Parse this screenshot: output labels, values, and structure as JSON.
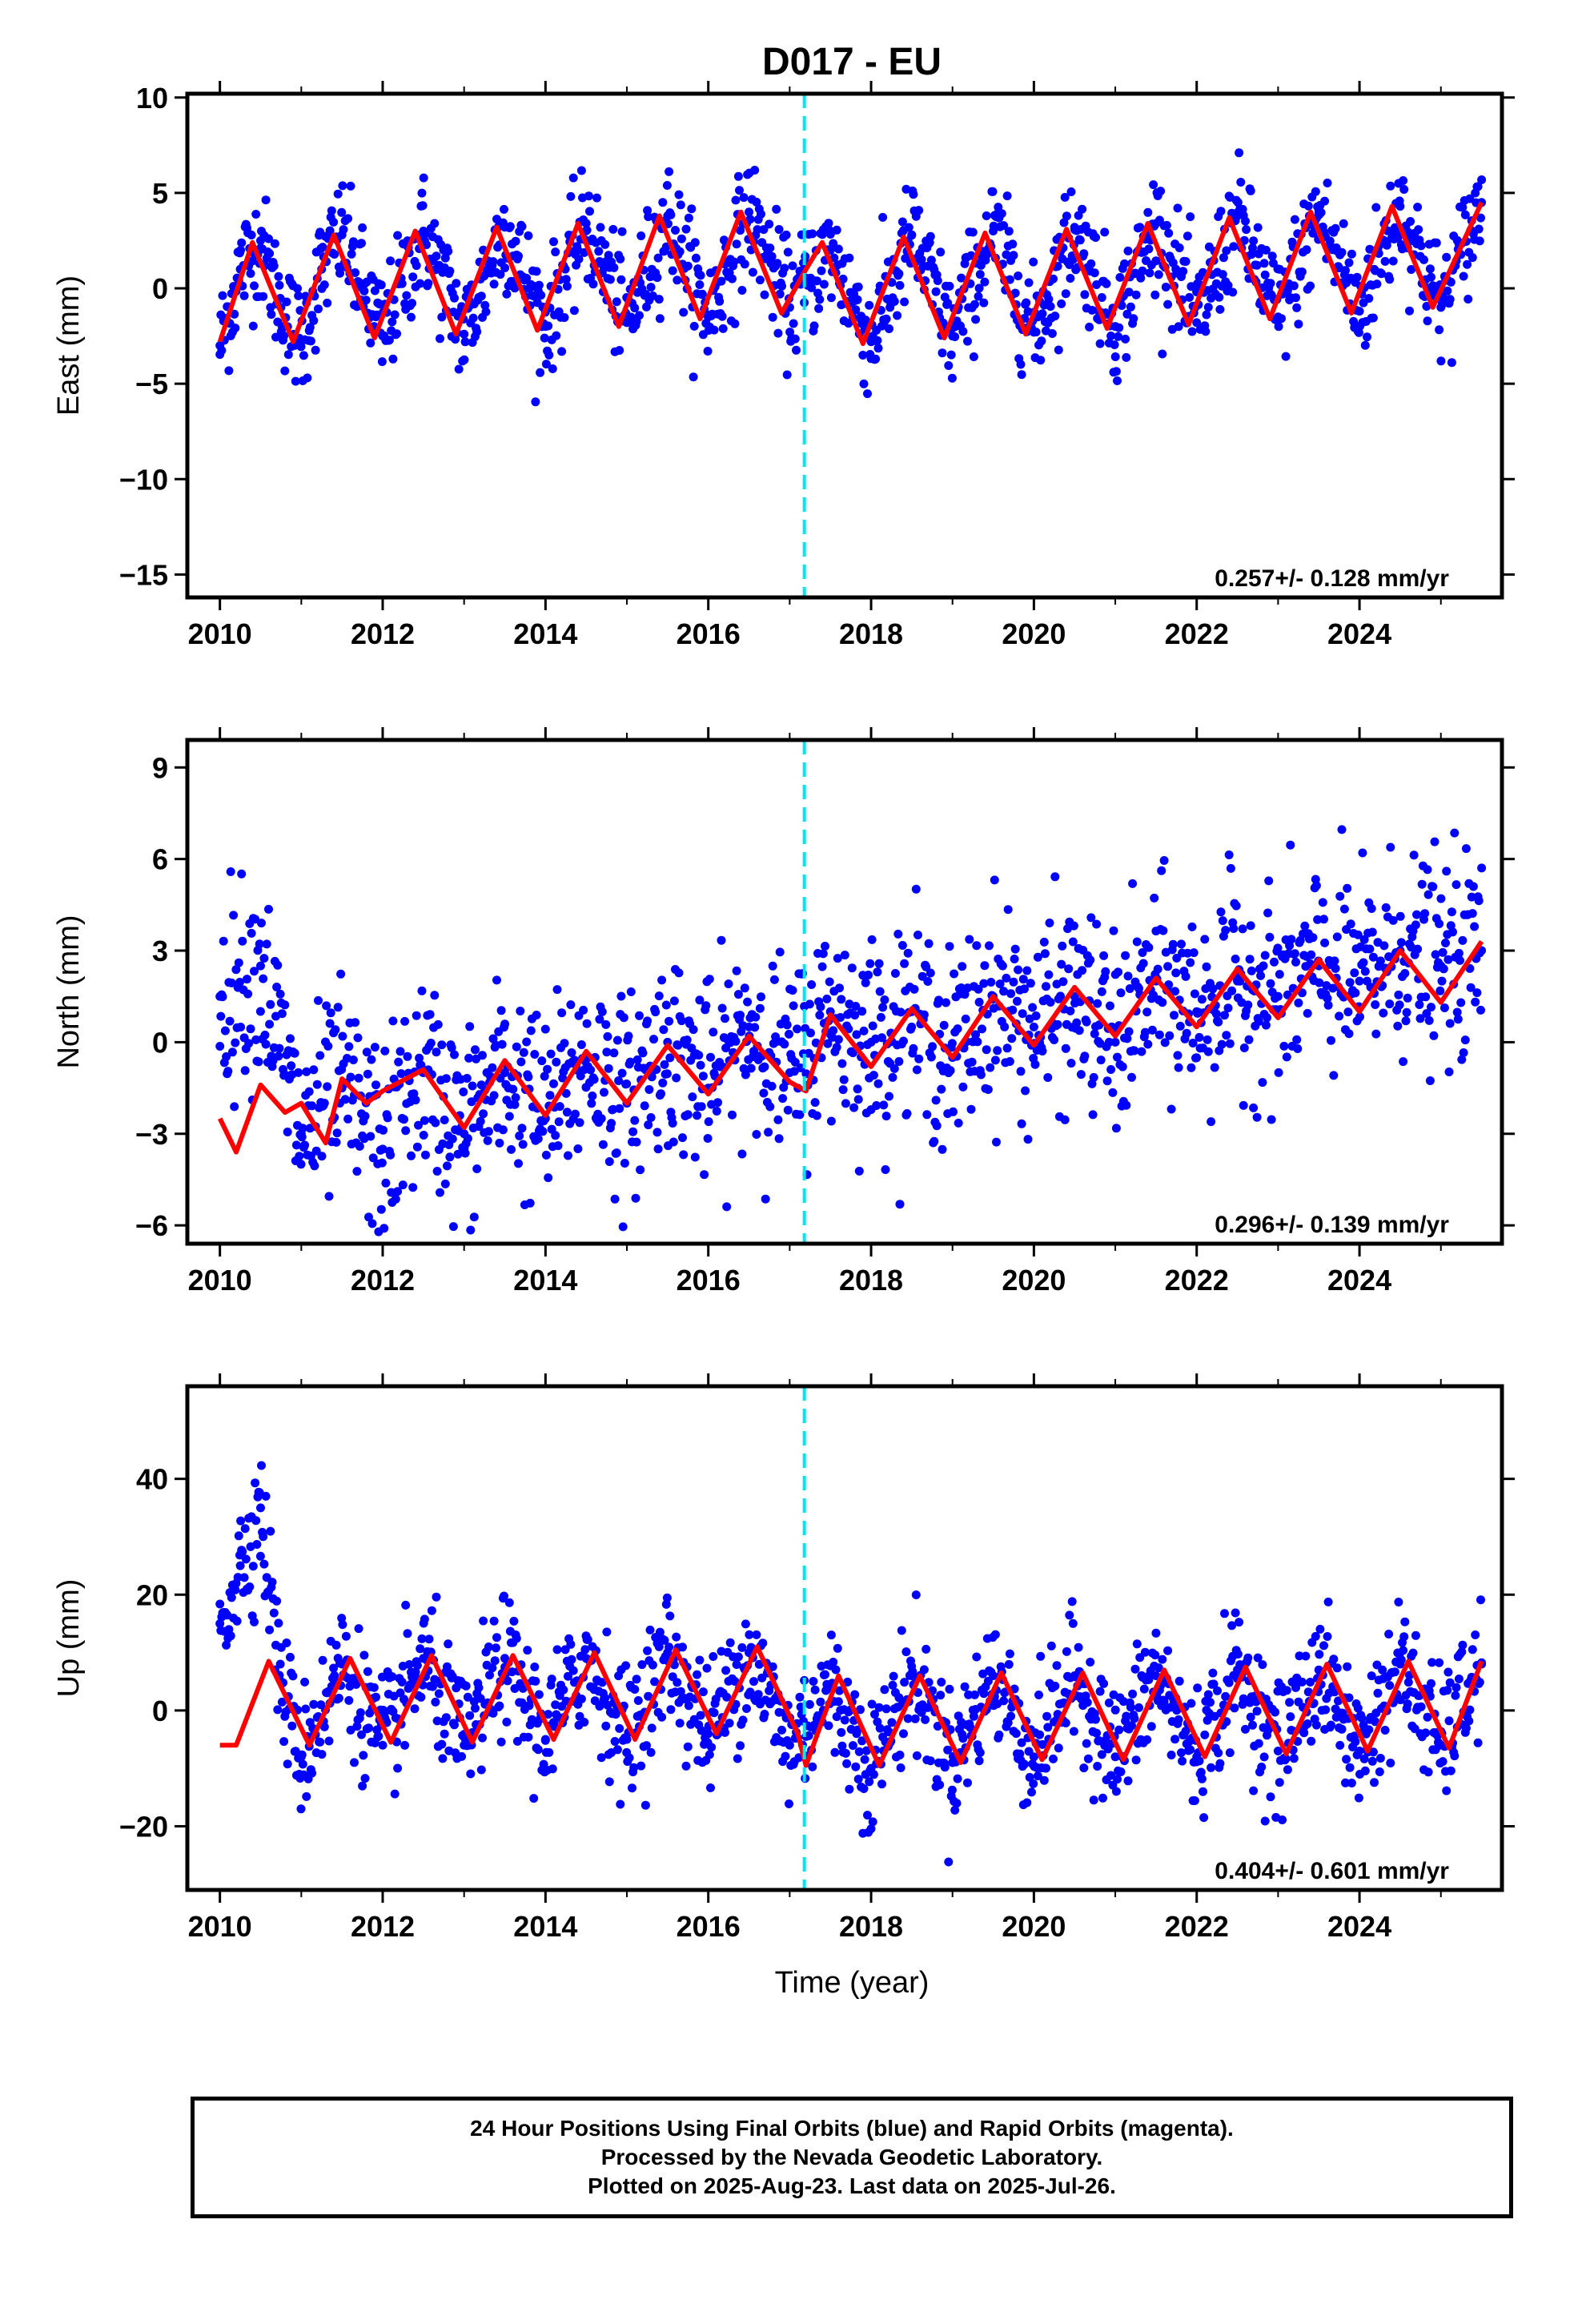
{
  "title": "D017 - EU",
  "colors": {
    "final_orbits": "#0000ff",
    "fit_curve": "#ff0000",
    "event_line": "#00e5ee",
    "axes": "#000000"
  },
  "x_axis": {
    "label": "Time (year)",
    "range": [
      2009.6,
      2025.75
    ],
    "ticks": [
      "2010",
      "2012",
      "2014",
      "2016",
      "2018",
      "2020",
      "2022",
      "2024"
    ]
  },
  "event_line_year": 2017.18,
  "panels": [
    {
      "id": "east",
      "ylabel": "East (mm)",
      "ylim": [
        -16.2,
        10.2
      ],
      "yticks": [
        "10",
        "5",
        "0",
        "−5",
        "−10",
        "−15"
      ],
      "rate_label": "0.257+/- 0.128 mm/yr"
    },
    {
      "id": "north",
      "ylabel": "North (mm)",
      "ylim": [
        -6.6,
        9.9
      ],
      "yticks": [
        "9",
        "6",
        "3",
        "0",
        "−3",
        "−6"
      ],
      "rate_label": "0.296+/- 0.139 mm/yr"
    },
    {
      "id": "up",
      "ylabel": "Up (mm)",
      "ylim": [
        -31,
        56
      ],
      "yticks": [
        "40",
        "20",
        "0",
        "−20"
      ],
      "rate_label": "0.404+/- 0.601 mm/yr"
    }
  ],
  "caption": {
    "line1": "24 Hour Positions Using Final Orbits (blue) and Rapid Orbits (magenta).",
    "line2": "Processed by the Nevada Geodetic Laboratory.",
    "line3": "Plotted on 2025-Aug-23. Last data on 2025-Jul-26."
  },
  "chart_data": [
    {
      "type": "scatter",
      "title": "D017 - EU",
      "xlabel": "",
      "ylabel": "East (mm)",
      "xlim": [
        2009.6,
        2025.75
      ],
      "ylim": [
        -16.2,
        10.2
      ],
      "grid": false,
      "annotation": "0.257+/- 0.128 mm/yr",
      "series": [
        {
          "name": "Final Orbits",
          "kind": "points",
          "x": [
            2010.0,
            2010.25,
            2010.5,
            2010.75,
            2011.0,
            2011.25,
            2011.5,
            2011.75,
            2012.0,
            2012.5,
            2013.0,
            2013.5,
            2014.0,
            2014.5,
            2015.0,
            2015.5,
            2016.0,
            2016.5,
            2017.0,
            2017.5,
            2018.0,
            2018.5,
            2019.0,
            2019.5,
            2020.0,
            2020.5,
            2021.0,
            2021.5,
            2022.0,
            2022.5,
            2023.0,
            2023.5,
            2024.0,
            2024.5,
            2025.0,
            2025.5
          ],
          "y": [
            -3.0,
            1.0,
            2.5,
            -1.0,
            -2.8,
            1.0,
            2.8,
            0.0,
            -2.5,
            3.0,
            -2.4,
            3.2,
            -2.0,
            3.4,
            -1.8,
            3.8,
            -1.5,
            4.0,
            -1.0,
            2.0,
            -2.8,
            2.8,
            -2.5,
            3.0,
            -2.3,
            3.2,
            -2.0,
            3.4,
            -1.8,
            3.8,
            -1.5,
            4.0,
            -1.2,
            4.3,
            -1.0,
            4.5
          ]
        },
        {
          "name": "Model fit",
          "kind": "line",
          "x": [
            2010.0,
            2010.4,
            2010.9,
            2011.4,
            2011.9,
            2012.4,
            2012.9,
            2013.4,
            2013.9,
            2014.4,
            2014.9,
            2015.4,
            2015.9,
            2016.4,
            2016.9,
            2017.2,
            2017.4,
            2017.9,
            2018.4,
            2018.9,
            2019.4,
            2019.9,
            2020.4,
            2020.9,
            2021.4,
            2021.9,
            2022.4,
            2022.9,
            2023.4,
            2023.9,
            2024.4,
            2024.9,
            2025.5
          ],
          "y": [
            -2.8,
            2.4,
            -2.8,
            2.8,
            -2.6,
            3.0,
            -2.4,
            3.2,
            -2.2,
            3.4,
            -2.0,
            3.8,
            -1.6,
            4.0,
            -1.3,
            1.0,
            2.4,
            -2.9,
            2.7,
            -2.6,
            2.9,
            -2.4,
            3.1,
            -2.1,
            3.4,
            -1.9,
            3.7,
            -1.6,
            4.0,
            -1.3,
            4.3,
            -1.0,
            4.5
          ]
        }
      ]
    },
    {
      "type": "scatter",
      "xlabel": "",
      "ylabel": "North (mm)",
      "xlim": [
        2009.6,
        2025.75
      ],
      "ylim": [
        -6.6,
        9.9
      ],
      "grid": false,
      "annotation": "0.296+/- 0.139 mm/yr",
      "series": [
        {
          "name": "Final Orbits",
          "kind": "points",
          "x": [
            2010.0,
            2010.5,
            2011.0,
            2011.5,
            2012.0,
            2012.5,
            2013.0,
            2013.5,
            2014.0,
            2014.5,
            2015.0,
            2015.5,
            2016.0,
            2016.5,
            2017.0,
            2017.5,
            2018.0,
            2018.5,
            2019.0,
            2019.5,
            2020.0,
            2020.5,
            2021.0,
            2021.5,
            2022.0,
            2022.5,
            2023.0,
            2023.5,
            2024.0,
            2024.5,
            2025.0,
            2025.5
          ],
          "y": [
            1.5,
            2.5,
            -3.0,
            -1.5,
            -3.5,
            -1.0,
            -3.0,
            -1.0,
            -2.5,
            -0.5,
            -2.0,
            0.0,
            -1.5,
            0.5,
            -1.0,
            1.0,
            0.0,
            1.0,
            -0.5,
            1.5,
            0.5,
            1.5,
            0.0,
            2.0,
            1.0,
            2.0,
            1.5,
            2.5,
            2.0,
            3.0,
            2.5,
            3.0
          ]
        },
        {
          "name": "Model fit",
          "kind": "line",
          "x": [
            2010.0,
            2010.2,
            2010.5,
            2010.8,
            2011.0,
            2011.3,
            2011.5,
            2011.8,
            2012.0,
            2012.5,
            2013.0,
            2013.5,
            2014.0,
            2014.5,
            2015.0,
            2015.5,
            2016.0,
            2016.5,
            2017.0,
            2017.2,
            2017.5,
            2018.0,
            2018.5,
            2019.0,
            2019.5,
            2020.0,
            2020.5,
            2021.0,
            2021.5,
            2022.0,
            2022.5,
            2023.0,
            2023.5,
            2024.0,
            2024.5,
            2025.0,
            2025.5
          ],
          "y": [
            -2.5,
            -3.6,
            -1.4,
            -2.3,
            -2.0,
            -3.3,
            -1.2,
            -2.0,
            -1.6,
            -0.9,
            -2.8,
            -0.6,
            -2.4,
            -0.3,
            -2.0,
            -0.1,
            -1.7,
            0.2,
            -1.3,
            -1.6,
            0.9,
            -0.8,
            1.1,
            -0.5,
            1.5,
            -0.1,
            1.8,
            0.2,
            2.1,
            0.5,
            2.4,
            0.8,
            2.7,
            1.0,
            3.0,
            1.3,
            3.3
          ]
        }
      ]
    },
    {
      "type": "scatter",
      "xlabel": "Time (year)",
      "ylabel": "Up (mm)",
      "xlim": [
        2009.6,
        2025.75
      ],
      "ylim": [
        -31,
        56
      ],
      "grid": false,
      "annotation": "0.404+/- 0.601 mm/yr",
      "series": [
        {
          "name": "Final Orbits",
          "kind": "points",
          "x": [
            2010.0,
            2010.25,
            2010.5,
            2010.75,
            2011.0,
            2011.5,
            2012.0,
            2012.5,
            2013.0,
            2013.5,
            2014.0,
            2014.5,
            2015.0,
            2015.5,
            2016.0,
            2016.5,
            2017.0,
            2017.5,
            2018.0,
            2018.5,
            2019.0,
            2019.5,
            2020.0,
            2020.5,
            2021.0,
            2021.5,
            2022.0,
            2022.5,
            2023.0,
            2023.5,
            2024.0,
            2024.5,
            2025.0,
            2025.5
          ],
          "y": [
            15,
            25,
            35,
            5,
            -8,
            8,
            -6,
            9,
            -6,
            9,
            -5,
            9,
            -5,
            10,
            -4,
            10,
            -6,
            4,
            -10,
            6,
            -9,
            6,
            -8,
            6,
            -8,
            6,
            -8,
            7,
            -7,
            7,
            -7,
            8,
            -6,
            8
          ]
        },
        {
          "name": "Model fit",
          "kind": "line",
          "x": [
            2010.0,
            2010.2,
            2010.6,
            2011.1,
            2011.6,
            2012.1,
            2012.6,
            2013.1,
            2013.6,
            2014.1,
            2014.6,
            2015.1,
            2015.6,
            2016.1,
            2016.6,
            2017.1,
            2017.2,
            2017.6,
            2018.1,
            2018.6,
            2019.1,
            2019.6,
            2020.1,
            2020.6,
            2021.1,
            2021.6,
            2022.1,
            2022.6,
            2023.1,
            2023.6,
            2024.1,
            2024.6,
            2025.1,
            2025.5
          ],
          "y": [
            -6,
            -6,
            8.5,
            -6,
            9,
            -5.5,
            9.5,
            -5.5,
            9.5,
            -5,
            10,
            -5,
            10.5,
            -4,
            11,
            -4,
            -9.5,
            6,
            -9.5,
            6,
            -9,
            6.5,
            -8.5,
            6.5,
            -8.5,
            7,
            -8,
            7.5,
            -7.5,
            8,
            -7,
            8.5,
            -6.5,
            8.5
          ]
        }
      ]
    }
  ]
}
